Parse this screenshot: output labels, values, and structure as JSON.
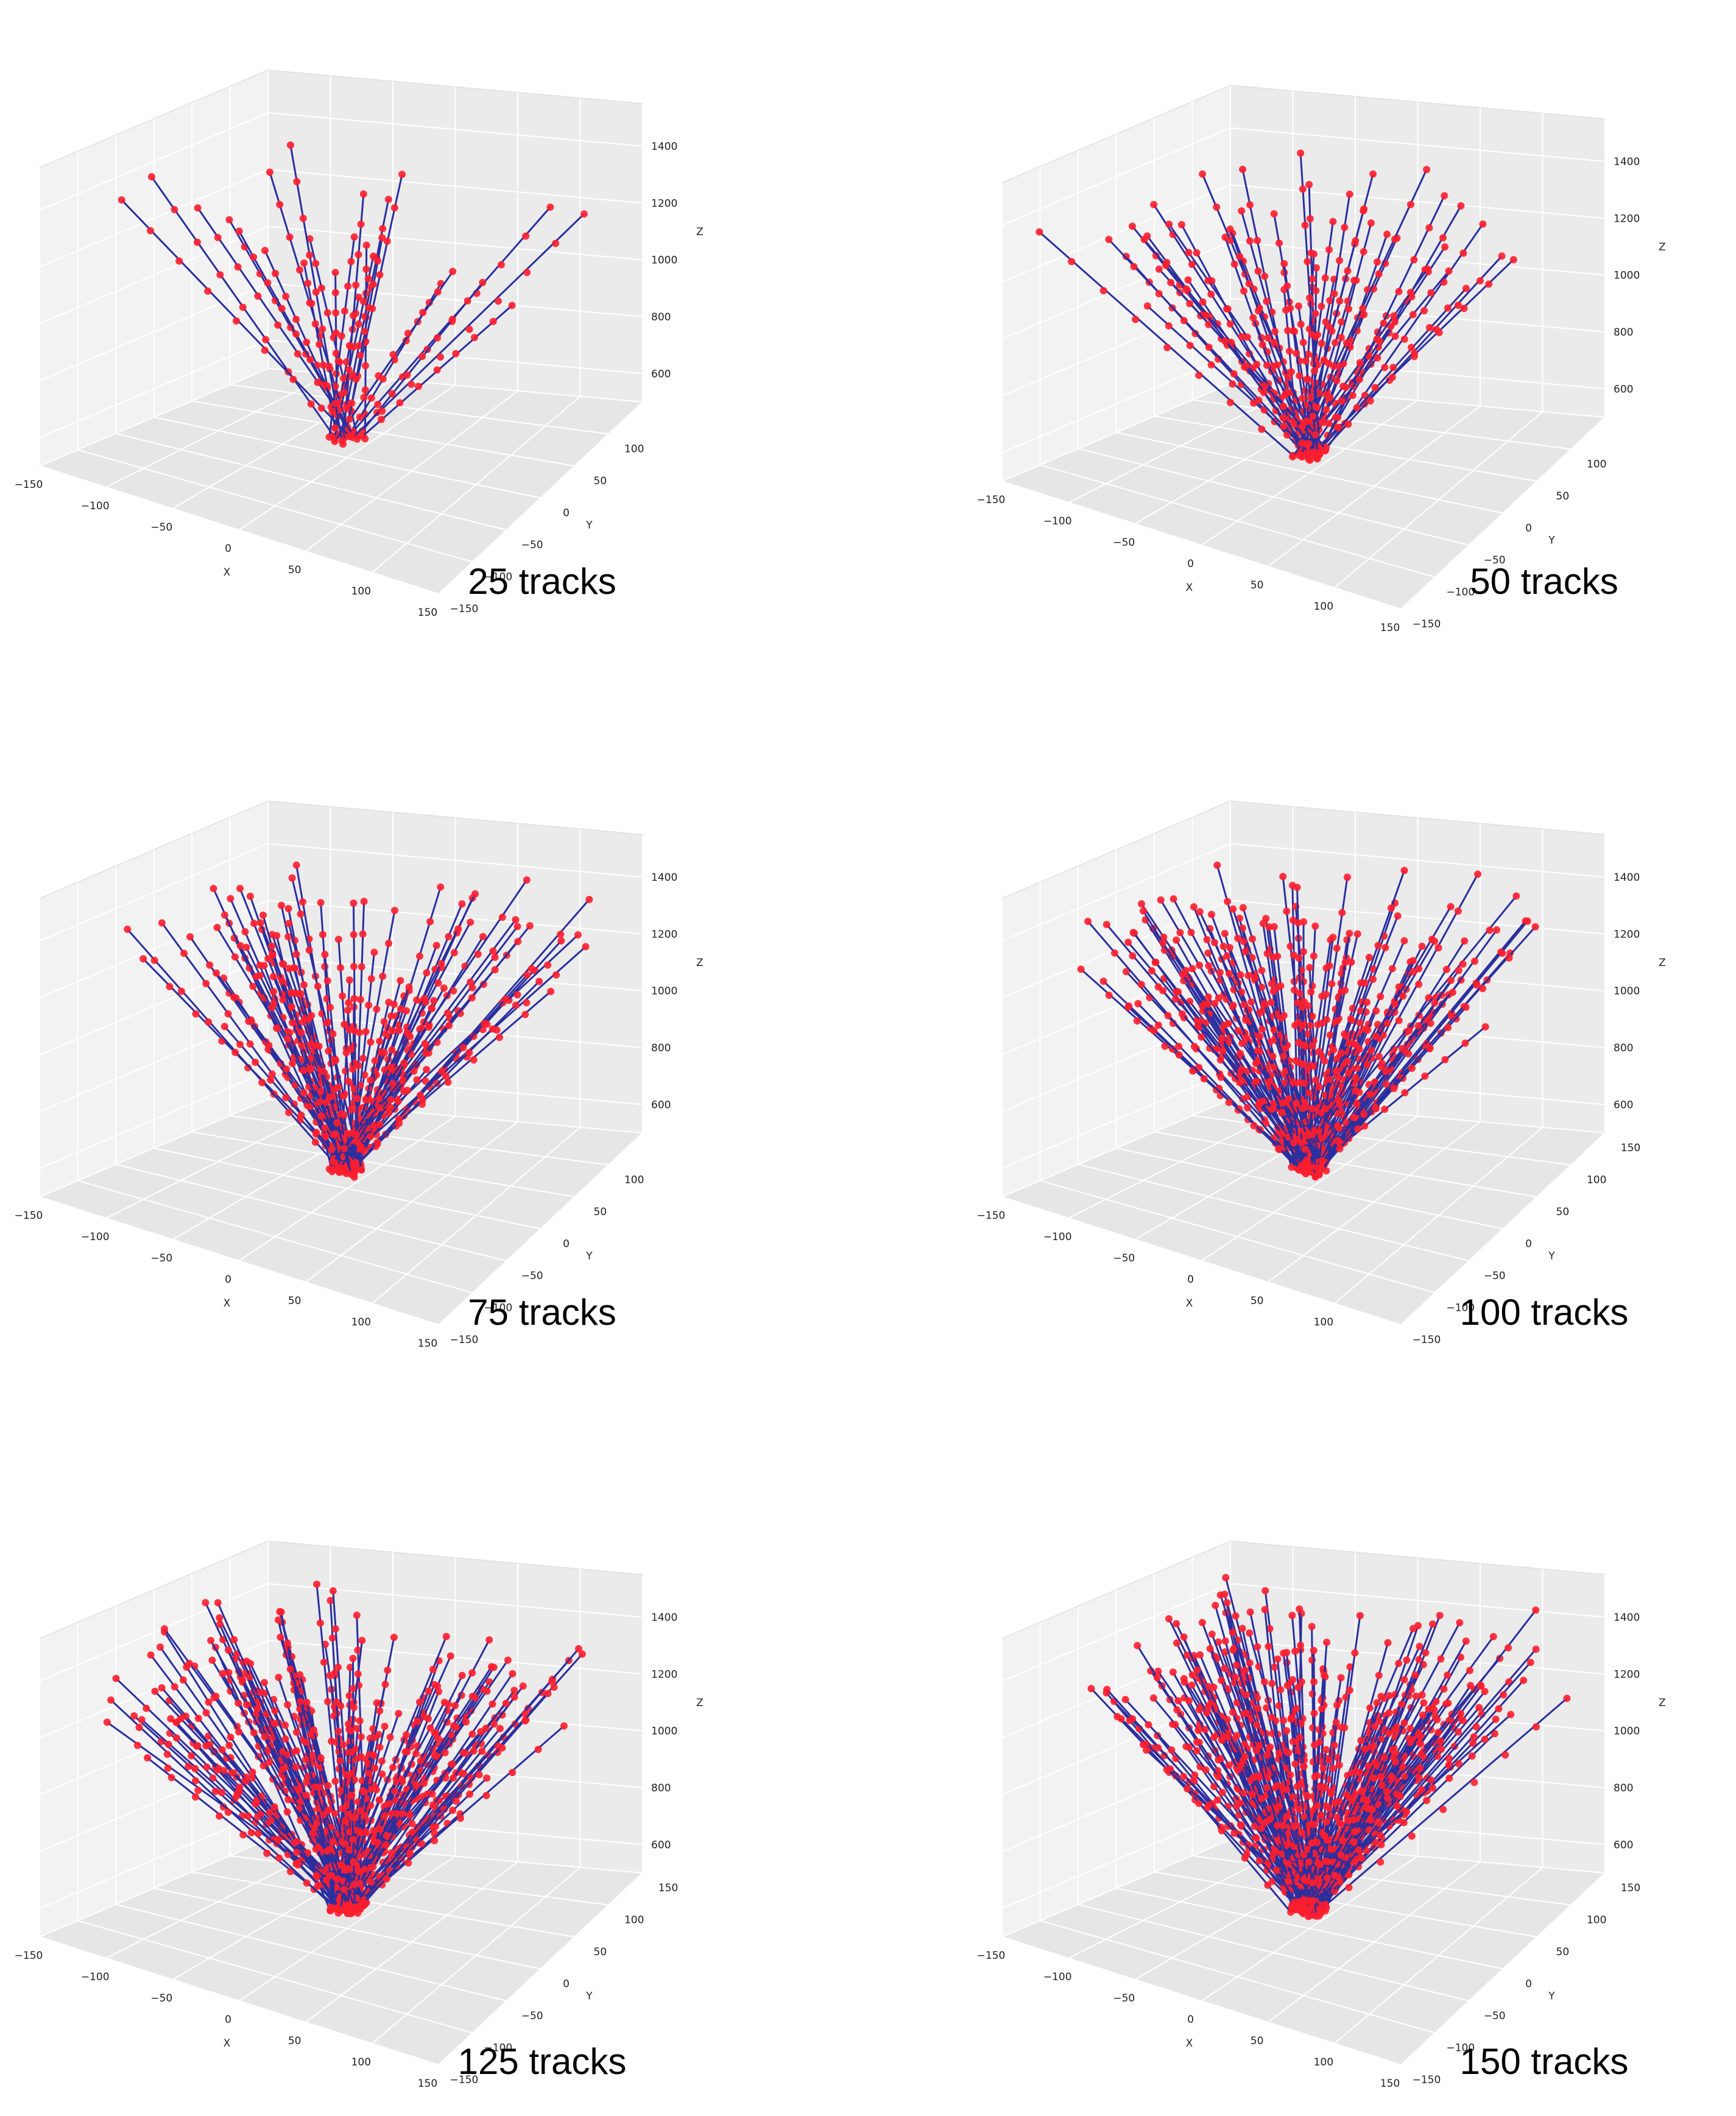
{
  "figure": {
    "description_free": true
  },
  "chart_data": [
    {
      "type": "scatter3d",
      "title": "25 tracks",
      "n_tracks": 25,
      "xlabel": "X",
      "ylabel": "Y",
      "zlabel": "Z",
      "xlim": [
        -150,
        150
      ],
      "ylim": [
        -150,
        150
      ],
      "zlim": [
        500,
        1550
      ],
      "xticks": [
        -150,
        -100,
        -50,
        0,
        50,
        100,
        150
      ],
      "yticks": [
        -150,
        -100,
        -50,
        0,
        50,
        100
      ],
      "zticks": [
        600,
        800,
        1000,
        1200,
        1400
      ],
      "grid": true,
      "track_color": "#2b2f9e",
      "hit_color": "#ff1e2d",
      "tracks_description": "straight tracks from near origin (z≈560) fanning outward to z≈1500, hits marked along each"
    },
    {
      "type": "scatter3d",
      "title": "50 tracks",
      "n_tracks": 50,
      "xlabel": "X",
      "ylabel": "Y",
      "zlabel": "Z",
      "xlim": [
        -150,
        150
      ],
      "ylim": [
        -150,
        150
      ],
      "zlim": [
        500,
        1550
      ],
      "xticks": [
        -150,
        -100,
        -50,
        0,
        50,
        100,
        150
      ],
      "yticks": [
        -150,
        -100,
        -50,
        0,
        50,
        100
      ],
      "zticks": [
        600,
        800,
        1000,
        1200,
        1400
      ],
      "grid": true,
      "track_color": "#2b2f9e",
      "hit_color": "#ff1e2d"
    },
    {
      "type": "scatter3d",
      "title": "75 tracks",
      "n_tracks": 75,
      "xlabel": "X",
      "ylabel": "Y",
      "zlabel": "Z",
      "xlim": [
        -150,
        150
      ],
      "ylim": [
        -150,
        150
      ],
      "zlim": [
        500,
        1550
      ],
      "xticks": [
        -150,
        -100,
        -50,
        0,
        50,
        100,
        150
      ],
      "yticks": [
        -150,
        -100,
        -50,
        0,
        50,
        100
      ],
      "zticks": [
        600,
        800,
        1000,
        1200,
        1400
      ],
      "grid": true,
      "track_color": "#2b2f9e",
      "hit_color": "#ff1e2d"
    },
    {
      "type": "scatter3d",
      "title": "100 tracks",
      "n_tracks": 100,
      "xlabel": "X",
      "ylabel": "Y",
      "zlabel": "Z",
      "xlim": [
        -150,
        150
      ],
      "ylim": [
        -150,
        150
      ],
      "zlim": [
        500,
        1550
      ],
      "xticks": [
        -150,
        -100,
        -50,
        0,
        50,
        100
      ],
      "yticks": [
        -150,
        -100,
        -50,
        0,
        50,
        100,
        150
      ],
      "zticks": [
        600,
        800,
        1000,
        1200,
        1400
      ],
      "grid": true,
      "track_color": "#2b2f9e",
      "hit_color": "#ff1e2d"
    },
    {
      "type": "scatter3d",
      "title": "125 tracks",
      "n_tracks": 125,
      "xlabel": "X",
      "ylabel": "Y",
      "zlabel": "Z",
      "xlim": [
        -150,
        150
      ],
      "ylim": [
        -150,
        150
      ],
      "zlim": [
        500,
        1550
      ],
      "xticks": [
        -150,
        -100,
        -50,
        0,
        50,
        100,
        150
      ],
      "yticks": [
        -150,
        -100,
        -50,
        0,
        50,
        100,
        150
      ],
      "zticks": [
        600,
        800,
        1000,
        1200,
        1400
      ],
      "grid": true,
      "track_color": "#2b2f9e",
      "hit_color": "#ff1e2d"
    },
    {
      "type": "scatter3d",
      "title": "150 tracks",
      "n_tracks": 150,
      "xlabel": "X",
      "ylabel": "Y",
      "zlabel": "Z",
      "xlim": [
        -150,
        150
      ],
      "ylim": [
        -150,
        150
      ],
      "zlim": [
        500,
        1550
      ],
      "xticks": [
        -150,
        -100,
        -50,
        0,
        50,
        100,
        150
      ],
      "yticks": [
        -150,
        -100,
        -50,
        0,
        50,
        100,
        150
      ],
      "zticks": [
        600,
        800,
        1000,
        1200,
        1400
      ],
      "grid": true,
      "track_color": "#2b2f9e",
      "hit_color": "#ff1e2d"
    }
  ]
}
